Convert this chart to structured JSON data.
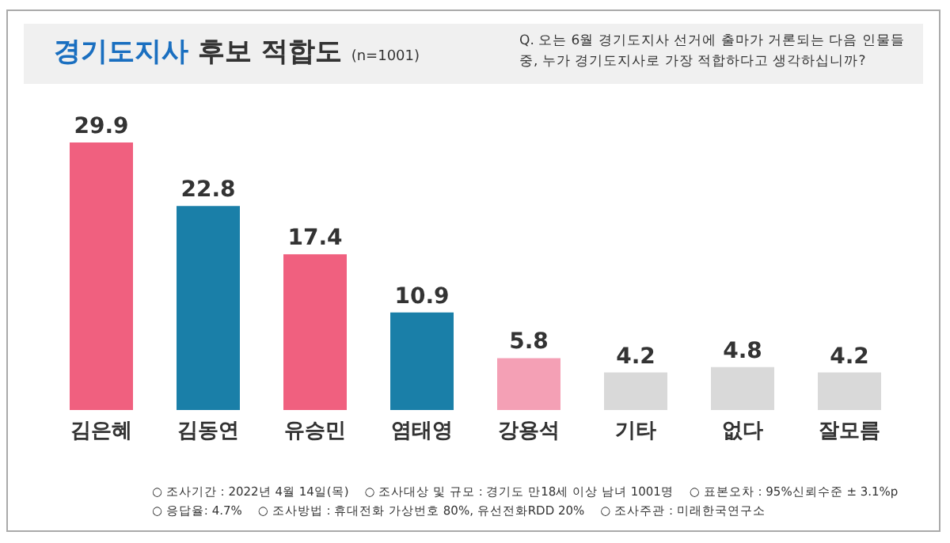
{
  "chart_data": {
    "type": "bar",
    "title": "경기도지사 후보 적합도",
    "subtitle": "(n=1001)",
    "categories": [
      "김은혜",
      "김동연",
      "유승민",
      "염태영",
      "강용석",
      "기타",
      "없다",
      "잘모름"
    ],
    "values": [
      29.9,
      22.8,
      17.4,
      10.9,
      5.8,
      4.2,
      4.8,
      4.2
    ],
    "colors": [
      "#f0607f",
      "#1a7fa8",
      "#f0607f",
      "#1a7fa8",
      "#f4a0b5",
      "#d9d9d9",
      "#d9d9d9",
      "#d9d9d9"
    ],
    "data_labels": true,
    "grid": false,
    "legend": false,
    "annotations": [
      "Q. 오는 6월 경기도지사 선거에 출마가 거론되는 다음 인물들 중, 누가 경기도지사로 가장 적합하다고 생각하십니까?",
      "○ 조사기간 : 2022년 4월 14일(목)",
      "○ 조사대상 및 규모 : 경기도 만18세 이상 남녀 1001명",
      "○ 표본오차 : 95%신뢰수준 ± 3.1%p",
      "○ 응답율: 4.7%",
      "○ 조사방법 : 휴대전화 가상번호 80%, 유선전화RDD 20%",
      "○ 조사주관 : 미래한국연구소"
    ]
  }
}
